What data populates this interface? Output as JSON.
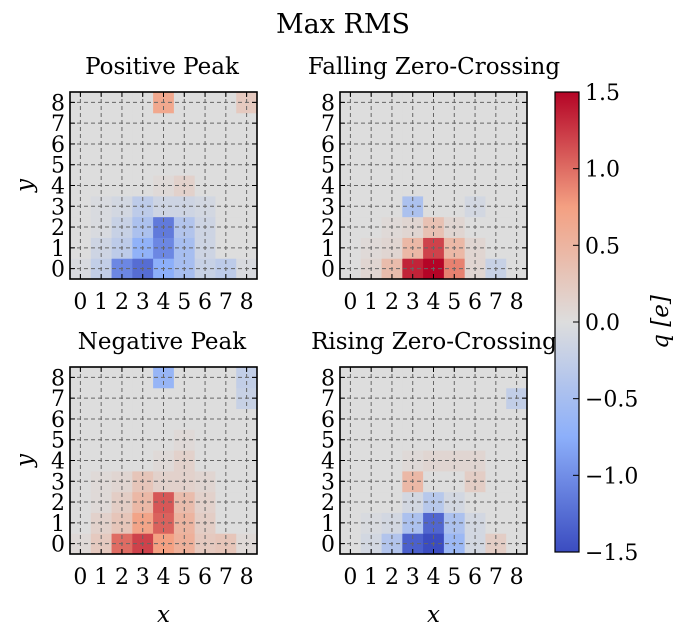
{
  "figure": {
    "suptitle": "Max RMS"
  },
  "chart_data": [
    {
      "type": "heatmap",
      "title": "Positive Peak",
      "xlabel": "",
      "ylabel": "y",
      "x": [
        0,
        1,
        2,
        3,
        4,
        5,
        6,
        7,
        8
      ],
      "y": [
        0,
        1,
        2,
        3,
        4,
        5,
        6,
        7,
        8
      ],
      "xlim": [
        -0.5,
        8.5
      ],
      "ylim": [
        -0.5,
        8.5
      ],
      "grid": true,
      "values": [
        [
          -0.05,
          -0.25,
          -1.05,
          -1.25,
          -0.75,
          -0.5,
          -0.2,
          -0.3,
          -0.05
        ],
        [
          0.0,
          -0.15,
          -0.3,
          -0.7,
          -1.05,
          -0.5,
          -0.15,
          0.0,
          0.0
        ],
        [
          0.0,
          -0.05,
          -0.2,
          -0.45,
          -1.15,
          -0.4,
          -0.15,
          0.0,
          0.0
        ],
        [
          0.0,
          -0.05,
          -0.1,
          -0.3,
          -0.15,
          -0.15,
          -0.1,
          0.0,
          0.0
        ],
        [
          0.0,
          0.0,
          0.0,
          0.0,
          0.05,
          0.15,
          0.0,
          0.0,
          0.0
        ],
        [
          0.0,
          0.0,
          0.0,
          0.0,
          0.0,
          0.0,
          0.0,
          0.0,
          0.0
        ],
        [
          0.0,
          0.0,
          0.0,
          0.0,
          0.0,
          0.0,
          0.0,
          0.0,
          0.0
        ],
        [
          0.0,
          0.0,
          0.0,
          0.0,
          0.0,
          0.0,
          0.0,
          0.0,
          0.0
        ],
        [
          0.0,
          0.0,
          0.0,
          0.0,
          0.65,
          0.0,
          0.0,
          0.0,
          0.25
        ]
      ]
    },
    {
      "type": "heatmap",
      "title": "Falling Zero-Crossing",
      "xlabel": "",
      "ylabel": "",
      "x": [
        0,
        1,
        2,
        3,
        4,
        5,
        6,
        7,
        8
      ],
      "y": [
        0,
        1,
        2,
        3,
        4,
        5,
        6,
        7,
        8
      ],
      "xlim": [
        -0.5,
        8.5
      ],
      "ylim": [
        -0.5,
        8.5
      ],
      "grid": true,
      "values": [
        [
          0.0,
          0.1,
          0.4,
          1.35,
          1.5,
          0.9,
          0.1,
          -0.2,
          0.0
        ],
        [
          0.0,
          0.05,
          0.1,
          0.45,
          1.2,
          0.45,
          0.1,
          0.0,
          0.0
        ],
        [
          0.0,
          0.0,
          0.05,
          0.1,
          0.35,
          0.1,
          0.0,
          0.0,
          0.0
        ],
        [
          0.0,
          0.0,
          0.0,
          -0.45,
          0.0,
          0.0,
          -0.1,
          0.0,
          0.0
        ],
        [
          0.0,
          0.0,
          0.0,
          0.0,
          0.0,
          0.0,
          0.0,
          0.0,
          0.0
        ],
        [
          0.0,
          0.0,
          0.0,
          0.0,
          0.0,
          0.0,
          0.0,
          0.0,
          0.0
        ],
        [
          0.0,
          0.0,
          0.0,
          0.0,
          0.0,
          0.0,
          0.0,
          0.0,
          0.0
        ],
        [
          0.0,
          0.0,
          0.0,
          0.0,
          0.0,
          0.0,
          0.0,
          0.0,
          0.0
        ],
        [
          0.0,
          0.0,
          0.0,
          0.0,
          0.0,
          0.0,
          0.0,
          0.0,
          0.0
        ]
      ]
    },
    {
      "type": "heatmap",
      "title": "Negative Peak",
      "xlabel": "x",
      "ylabel": "y",
      "x": [
        0,
        1,
        2,
        3,
        4,
        5,
        6,
        7,
        8
      ],
      "y": [
        0,
        1,
        2,
        3,
        4,
        5,
        6,
        7,
        8
      ],
      "xlim": [
        -0.5,
        8.5
      ],
      "ylim": [
        -0.5,
        8.5
      ],
      "grid": true,
      "values": [
        [
          0.05,
          0.25,
          1.0,
          1.2,
          0.75,
          0.55,
          0.25,
          0.3,
          0.05
        ],
        [
          0.0,
          0.15,
          0.3,
          0.7,
          1.05,
          0.5,
          0.2,
          0.0,
          0.0
        ],
        [
          0.0,
          0.05,
          0.2,
          0.45,
          1.1,
          0.4,
          0.15,
          0.0,
          0.0
        ],
        [
          0.0,
          0.05,
          0.1,
          0.3,
          0.15,
          0.15,
          0.1,
          0.0,
          0.0
        ],
        [
          0.0,
          0.0,
          0.0,
          0.0,
          0.05,
          0.15,
          0.0,
          0.0,
          0.0
        ],
        [
          0.0,
          0.0,
          0.0,
          0.0,
          0.0,
          0.05,
          0.0,
          0.0,
          0.0
        ],
        [
          0.0,
          0.0,
          0.0,
          0.0,
          0.0,
          0.0,
          0.0,
          0.0,
          0.0
        ],
        [
          0.0,
          0.0,
          0.0,
          0.0,
          0.0,
          0.0,
          0.0,
          0.0,
          -0.2
        ],
        [
          0.0,
          0.0,
          0.0,
          0.0,
          -0.65,
          0.0,
          0.0,
          0.0,
          -0.25
        ]
      ]
    },
    {
      "type": "heatmap",
      "title": "Rising Zero-Crossing",
      "xlabel": "x",
      "ylabel": "",
      "x": [
        0,
        1,
        2,
        3,
        4,
        5,
        6,
        7,
        8
      ],
      "y": [
        0,
        1,
        2,
        3,
        4,
        5,
        6,
        7,
        8
      ],
      "xlim": [
        -0.5,
        8.5
      ],
      "ylim": [
        -0.5,
        8.5
      ],
      "grid": true,
      "values": [
        [
          0.0,
          -0.1,
          -0.4,
          -1.35,
          -1.5,
          -0.6,
          -0.1,
          0.2,
          0.0
        ],
        [
          0.0,
          -0.05,
          -0.1,
          -0.45,
          -1.3,
          -0.45,
          -0.1,
          0.0,
          0.0
        ],
        [
          0.0,
          0.0,
          0.0,
          -0.1,
          -0.35,
          -0.1,
          0.0,
          0.0,
          0.0
        ],
        [
          0.0,
          0.0,
          0.0,
          0.45,
          0.0,
          0.0,
          0.2,
          0.0,
          0.0
        ],
        [
          0.0,
          0.0,
          0.0,
          0.05,
          0.1,
          0.1,
          0.1,
          0.0,
          0.0
        ],
        [
          0.0,
          0.0,
          0.0,
          0.0,
          0.0,
          0.0,
          0.0,
          0.0,
          0.0
        ],
        [
          0.0,
          0.0,
          0.0,
          0.0,
          0.0,
          0.0,
          0.0,
          0.0,
          0.0
        ],
        [
          0.0,
          0.0,
          0.0,
          0.0,
          0.0,
          0.0,
          0.0,
          0.0,
          -0.25
        ],
        [
          0.0,
          0.0,
          0.0,
          0.0,
          0.0,
          0.0,
          0.0,
          0.0,
          0.0
        ]
      ]
    }
  ],
  "colorbar": {
    "label": "q [e]",
    "colormap": "coolwarm",
    "vmin": -1.5,
    "vmax": 1.5,
    "ticks": [
      -1.5,
      -1.0,
      -0.5,
      0.0,
      0.5,
      1.0,
      1.5
    ],
    "tick_labels": [
      "−1.5",
      "−1.0",
      "−0.5",
      "0.0",
      "0.5",
      "1.0",
      "1.5"
    ],
    "color_low": "#3b4cc0",
    "color_mid": "#dddddd",
    "color_high": "#b40426"
  }
}
